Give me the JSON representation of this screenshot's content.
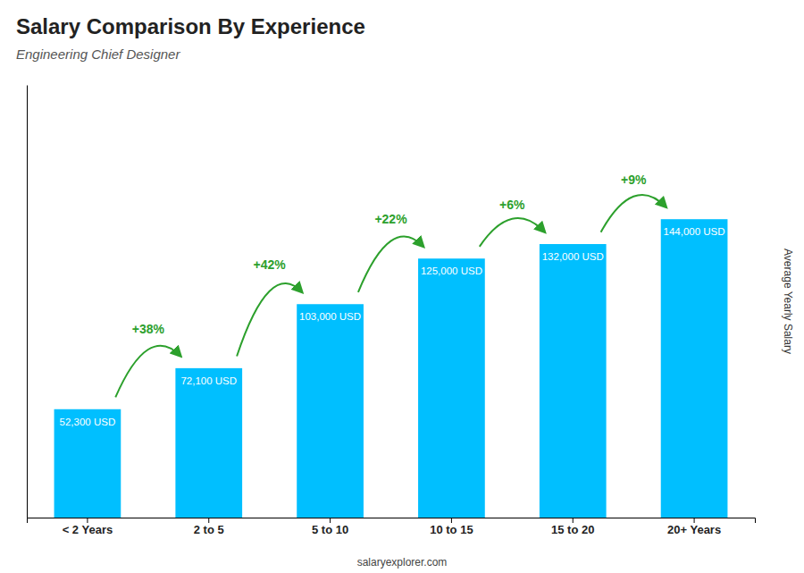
{
  "chart_data": {
    "type": "bar",
    "title": "Salary Comparison By Experience",
    "subtitle": "Engineering Chief Designer",
    "ylabel": "Average Yearly Salary",
    "footer": "salaryexplorer.com",
    "categories": [
      "< 2 Years",
      "2 to 5",
      "5 to 10",
      "10 to 15",
      "15 to 20",
      "20+ Years"
    ],
    "values": [
      52300,
      72100,
      103000,
      125000,
      132000,
      144000
    ],
    "value_labels": [
      "52,300 USD",
      "72,100 USD",
      "103,000 USD",
      "125,000 USD",
      "132,000 USD",
      "144,000 USD"
    ],
    "data_labels": true,
    "annotations": [
      "+38%",
      "+42%",
      "+22%",
      "+6%",
      "+9%"
    ],
    "color": "#00BFFF",
    "ylim": [
      0,
      208800
    ],
    "yticks": [],
    "tick_labels": "x",
    "grid": false
  }
}
